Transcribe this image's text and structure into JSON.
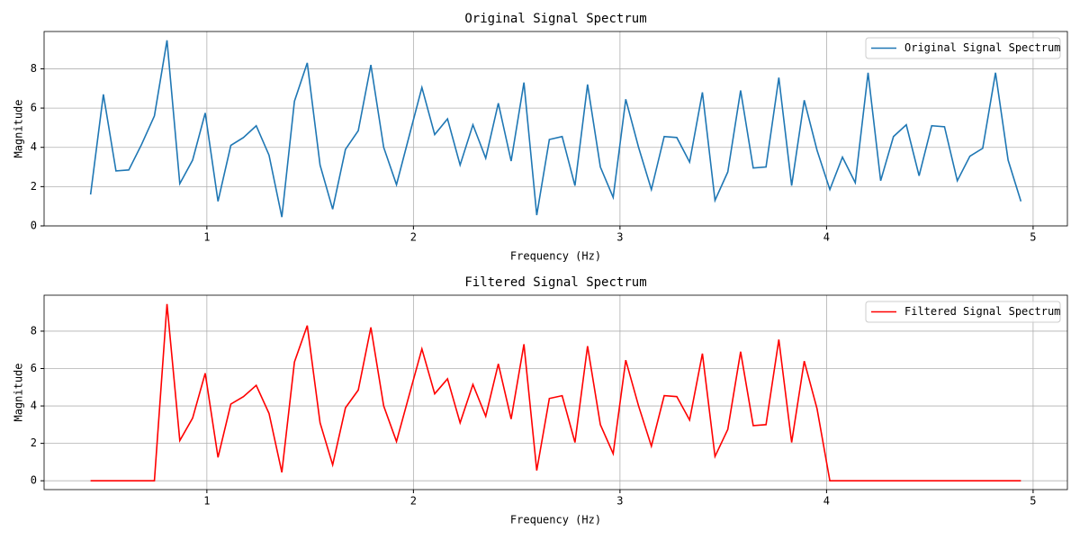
{
  "chart_data": [
    {
      "type": "line",
      "title": "Original Signal Spectrum",
      "x_label": "Frequency (Hz)",
      "y_label": "Magnitude",
      "x": [
        0.437,
        0.499,
        0.56,
        0.622,
        0.684,
        0.746,
        0.807,
        0.869,
        0.931,
        0.992,
        1.054,
        1.116,
        1.177,
        1.239,
        1.301,
        1.363,
        1.424,
        1.486,
        1.548,
        1.609,
        1.671,
        1.733,
        1.794,
        1.856,
        1.918,
        1.98,
        2.041,
        2.103,
        2.165,
        2.226,
        2.288,
        2.35,
        2.411,
        2.473,
        2.535,
        2.597,
        2.658,
        2.72,
        2.782,
        2.843,
        2.905,
        2.967,
        3.028,
        3.09,
        3.152,
        3.214,
        3.275,
        3.337,
        3.399,
        3.46,
        3.522,
        3.584,
        3.645,
        3.707,
        3.769,
        3.831,
        3.892,
        3.954,
        4.016,
        4.077,
        4.139,
        4.201,
        4.262,
        4.324,
        4.386,
        4.448,
        4.509,
        4.571,
        4.633,
        4.694,
        4.756,
        4.818,
        4.879,
        4.941
      ],
      "series": [
        {
          "name": "Original Signal Spectrum",
          "color": "#1f77b4",
          "values": [
            1.6,
            6.7,
            2.8,
            2.85,
            4.15,
            5.6,
            9.45,
            2.15,
            3.35,
            5.75,
            1.25,
            4.1,
            4.5,
            5.1,
            3.6,
            0.45,
            6.35,
            8.3,
            3.1,
            0.85,
            3.9,
            4.85,
            8.2,
            4.0,
            2.1,
            4.6,
            7.05,
            4.65,
            5.45,
            3.1,
            5.15,
            3.45,
            6.25,
            3.3,
            7.3,
            0.55,
            4.4,
            4.55,
            2.05,
            7.2,
            3.0,
            1.45,
            6.45,
            4.0,
            1.85,
            4.55,
            4.5,
            3.25,
            6.8,
            1.3,
            2.75,
            6.9,
            2.95,
            3.0,
            7.55,
            2.05,
            6.4,
            3.85,
            1.85,
            3.5,
            2.2,
            7.8,
            2.3,
            4.55,
            5.15,
            2.55,
            5.1,
            5.05,
            2.3,
            3.55,
            3.95,
            7.8,
            3.35,
            1.25
          ]
        }
      ],
      "xlim": [
        0.212,
        5.166
      ],
      "ylim": [
        0,
        9.9
      ],
      "xticks": [
        1,
        2,
        3,
        4,
        5
      ],
      "yticks": [
        0,
        2,
        4,
        6,
        8
      ],
      "grid": true,
      "legend": "upper right"
    },
    {
      "type": "line",
      "title": "Filtered Signal Spectrum",
      "x_label": "Frequency (Hz)",
      "y_label": "Magnitude",
      "x": [
        0.437,
        0.499,
        0.56,
        0.622,
        0.684,
        0.746,
        0.807,
        0.869,
        0.931,
        0.992,
        1.054,
        1.116,
        1.177,
        1.239,
        1.301,
        1.363,
        1.424,
        1.486,
        1.548,
        1.609,
        1.671,
        1.733,
        1.794,
        1.856,
        1.918,
        1.98,
        2.041,
        2.103,
        2.165,
        2.226,
        2.288,
        2.35,
        2.411,
        2.473,
        2.535,
        2.597,
        2.658,
        2.72,
        2.782,
        2.843,
        2.905,
        2.967,
        3.028,
        3.09,
        3.152,
        3.214,
        3.275,
        3.337,
        3.399,
        3.46,
        3.522,
        3.584,
        3.645,
        3.707,
        3.769,
        3.831,
        3.892,
        3.954,
        4.016,
        4.077,
        4.139,
        4.201,
        4.262,
        4.324,
        4.386,
        4.448,
        4.509,
        4.571,
        4.633,
        4.694,
        4.756,
        4.818,
        4.879,
        4.941
      ],
      "series": [
        {
          "name": "Filtered Signal Spectrum",
          "color": "#ff0000",
          "values": [
            0,
            0,
            0,
            0,
            0,
            0,
            9.45,
            2.15,
            3.35,
            5.75,
            1.25,
            4.1,
            4.5,
            5.1,
            3.6,
            0.45,
            6.35,
            8.3,
            3.1,
            0.85,
            3.9,
            4.85,
            8.2,
            4.0,
            2.1,
            4.6,
            7.05,
            4.65,
            5.45,
            3.1,
            5.15,
            3.45,
            6.25,
            3.3,
            7.3,
            0.55,
            4.4,
            4.55,
            2.05,
            7.2,
            3.0,
            1.45,
            6.45,
            4.0,
            1.85,
            4.55,
            4.5,
            3.25,
            6.8,
            1.3,
            2.75,
            6.9,
            2.95,
            3.0,
            7.55,
            2.05,
            6.4,
            3.85,
            0,
            0,
            0,
            0,
            0,
            0,
            0,
            0,
            0,
            0,
            0,
            0,
            0,
            0,
            0,
            0
          ]
        }
      ],
      "xlim": [
        0.212,
        5.166
      ],
      "ylim": [
        -0.4725,
        9.9225
      ],
      "xticks": [
        1,
        2,
        3,
        4,
        5
      ],
      "yticks": [
        0,
        2,
        4,
        6,
        8
      ],
      "grid": true,
      "legend": "upper right"
    }
  ]
}
